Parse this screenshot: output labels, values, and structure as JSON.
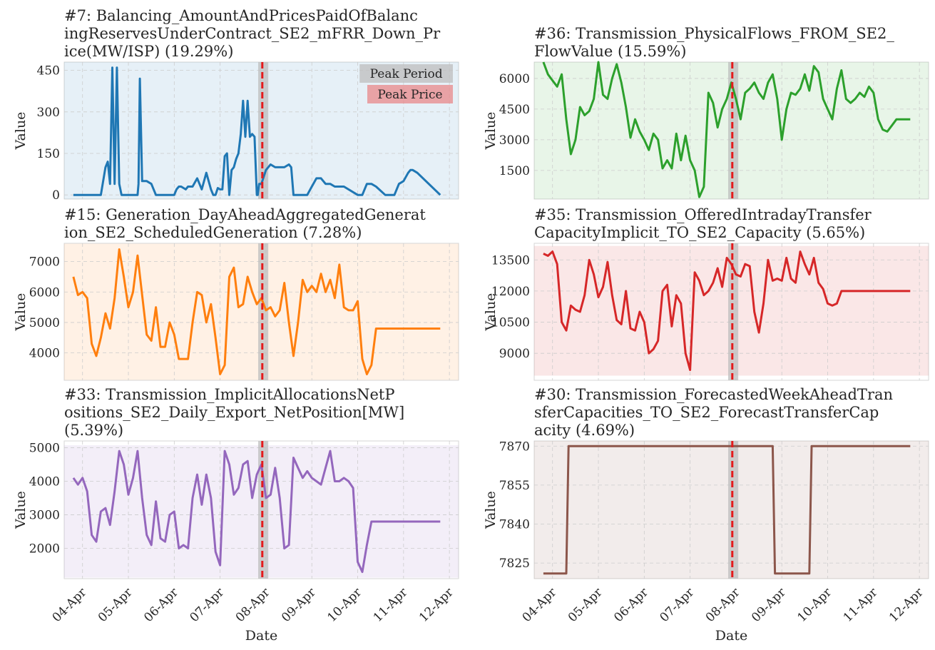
{
  "chart_data": [
    {
      "type": "line",
      "title_lines": [
        "#7: Balancing_AmountAndPricesPaidOfBalanc",
        "ingReservesUnderContract_SE2_mFRR_Down_Pr",
        "ice(MW/ISP) (19.29%)"
      ],
      "ylabel": "Value",
      "xlabel": "",
      "ylim": [
        -15,
        480
      ],
      "yticks": [
        0,
        150,
        300,
        450
      ],
      "ytick_labels": [
        "0",
        "150",
        "300",
        "450"
      ],
      "color": "#1f77b4",
      "band_color": "#1f77b4",
      "legend": [
        "Peak Period",
        "Peak Price"
      ],
      "series": [
        {
          "x": [
            0,
            0.3,
            0.6,
            0.7,
            0.75,
            0.8,
            0.85,
            0.9,
            0.95,
            1.0,
            1.05,
            1.1,
            1.4,
            1.42,
            1.45,
            1.5,
            1.6,
            1.7,
            1.75,
            1.8,
            1.85,
            1.9,
            2.2,
            2.25,
            2.3,
            2.35,
            2.45,
            2.5,
            2.6,
            2.7,
            2.8,
            2.9,
            3.0,
            3.05,
            3.1,
            3.15,
            3.2,
            3.25,
            3.3,
            3.35,
            3.4,
            3.45,
            3.5,
            3.55,
            3.6,
            3.65,
            3.7,
            3.75,
            3.8,
            3.85,
            3.9,
            3.95,
            4.0,
            4.02,
            4.05,
            4.1,
            4.2,
            4.3,
            4.4,
            4.5,
            4.6,
            4.7,
            4.75,
            4.8,
            5.1,
            5.2,
            5.3,
            5.4,
            5.5,
            5.6,
            5.7,
            5.8,
            5.9,
            6.2,
            6.3,
            6.4,
            6.5,
            6.6,
            6.8,
            6.9,
            7.0,
            7.1,
            7.2,
            7.3,
            7.35,
            7.4,
            7.5,
            8.0
          ],
          "y": [
            0,
            0,
            0,
            100,
            120,
            40,
            460,
            40,
            460,
            40,
            0,
            0,
            0,
            40,
            420,
            50,
            50,
            40,
            20,
            0,
            0,
            0,
            0,
            20,
            30,
            30,
            20,
            30,
            30,
            60,
            20,
            80,
            20,
            0,
            0,
            25,
            20,
            20,
            140,
            150,
            0,
            90,
            100,
            130,
            150,
            220,
            340,
            210,
            340,
            210,
            220,
            210,
            0,
            0,
            40,
            40,
            90,
            110,
            100,
            100,
            100,
            110,
            100,
            0,
            0,
            30,
            60,
            60,
            40,
            40,
            30,
            30,
            30,
            0,
            0,
            40,
            40,
            30,
            0,
            0,
            0,
            40,
            50,
            80,
            90,
            90,
            80,
            0
          ]
        }
      ]
    },
    {
      "type": "line",
      "title_lines": [
        "#36: Transmission_PhysicalFlows_FROM_SE2_",
        "FlowValue (15.59%)"
      ],
      "ylabel": "Value",
      "xlabel": "",
      "ylim": [
        100,
        6800
      ],
      "yticks": [
        1500,
        3000,
        4500,
        6000
      ],
      "ytick_labels": [
        "1500",
        "3000",
        "4500",
        "6000"
      ],
      "color": "#2ca02c",
      "band_color": "#2ca02c",
      "series": [
        {
          "x": [
            0,
            0.1,
            0.2,
            0.3,
            0.4,
            0.5,
            0.6,
            0.7,
            0.8,
            0.9,
            1.0,
            1.1,
            1.2,
            1.3,
            1.4,
            1.5,
            1.6,
            1.7,
            1.8,
            1.9,
            2.0,
            2.1,
            2.2,
            2.3,
            2.4,
            2.5,
            2.6,
            2.7,
            2.8,
            2.9,
            3.0,
            3.1,
            3.2,
            3.3,
            3.4,
            3.5,
            3.6,
            3.7,
            3.8,
            3.9,
            4.0,
            4.1,
            4.2,
            4.3,
            4.4,
            4.5,
            4.6,
            4.7,
            4.8,
            4.9,
            5.0,
            5.1,
            5.2,
            5.3,
            5.4,
            5.5,
            5.6,
            5.7,
            5.8,
            5.9,
            6.0,
            6.1,
            6.2,
            6.3,
            6.4,
            6.5,
            6.6,
            6.7,
            6.8,
            6.9,
            7.0,
            7.1,
            7.2,
            7.3,
            7.4,
            7.5,
            7.6,
            7.7,
            7.8,
            7.9,
            8.0
          ],
          "y": [
            6800,
            6200,
            5900,
            5600,
            6200,
            4000,
            2300,
            3000,
            4600,
            4200,
            4400,
            5000,
            6800,
            5200,
            5000,
            6000,
            6700,
            5800,
            4600,
            3100,
            4000,
            3400,
            3000,
            2500,
            3300,
            3000,
            1600,
            2000,
            1600,
            3300,
            2000,
            3200,
            2000,
            1500,
            200,
            700,
            5300,
            4800,
            3600,
            4500,
            5000,
            5800,
            5000,
            4000,
            5300,
            5500,
            5800,
            5300,
            5000,
            5800,
            6200,
            5000,
            3000,
            4500,
            5300,
            5200,
            5500,
            6200,
            5400,
            6600,
            6300,
            5000,
            4500,
            4000,
            5500,
            6400,
            5000,
            4800,
            5000,
            5300,
            5100,
            5600,
            5300,
            4000,
            3500,
            3400,
            3700,
            4000,
            4000,
            4000,
            4000
          ]
        }
      ]
    },
    {
      "type": "line",
      "title_lines": [
        "#15: Generation_DayAheadAggregatedGenerat",
        "ion_SE2_ScheduledGeneration (7.28%)"
      ],
      "ylabel": "Value",
      "xlabel": "",
      "ylim": [
        3100,
        7600
      ],
      "yticks": [
        4000,
        5000,
        6000,
        7000
      ],
      "ytick_labels": [
        "4000",
        "5000",
        "6000",
        "7000"
      ],
      "color": "#ff7f0e",
      "band_color": "#ff7f0e",
      "series": [
        {
          "x": [
            0,
            0.1,
            0.2,
            0.3,
            0.4,
            0.5,
            0.6,
            0.7,
            0.8,
            0.9,
            1.0,
            1.1,
            1.2,
            1.3,
            1.4,
            1.5,
            1.6,
            1.7,
            1.8,
            1.9,
            2.0,
            2.1,
            2.2,
            2.3,
            2.4,
            2.5,
            2.6,
            2.7,
            2.8,
            2.9,
            3.0,
            3.1,
            3.2,
            3.3,
            3.4,
            3.5,
            3.6,
            3.7,
            3.8,
            3.9,
            4.0,
            4.1,
            4.2,
            4.3,
            4.4,
            4.5,
            4.6,
            4.7,
            4.8,
            4.9,
            5.0,
            5.1,
            5.2,
            5.3,
            5.4,
            5.5,
            5.6,
            5.7,
            5.8,
            5.9,
            6.0,
            6.1,
            6.2,
            6.3,
            6.4,
            6.5,
            6.6,
            6.7,
            6.8,
            6.9,
            7.0,
            7.1,
            7.2,
            7.3,
            7.4,
            7.5,
            7.6,
            7.7,
            7.8,
            7.9,
            8.0
          ],
          "y": [
            6500,
            5900,
            6000,
            5800,
            4300,
            3900,
            4500,
            5300,
            4800,
            5800,
            7400,
            6500,
            5500,
            6000,
            7200,
            5900,
            4600,
            4400,
            5500,
            4200,
            4200,
            5000,
            4600,
            3800,
            3800,
            3800,
            5000,
            6000,
            5900,
            5000,
            5600,
            4500,
            3300,
            3600,
            6500,
            6800,
            5500,
            5600,
            6500,
            6000,
            5600,
            5800,
            5400,
            5500,
            5200,
            5400,
            6300,
            5000,
            3900,
            5000,
            6400,
            6000,
            6200,
            6000,
            6600,
            6000,
            6400,
            5800,
            6900,
            5500,
            5400,
            5400,
            5700,
            3800,
            3300,
            3600,
            4800,
            4800,
            4800,
            4800,
            4800,
            4800,
            4800,
            4800,
            4800,
            4800,
            4800,
            4800,
            4800,
            4800,
            4800
          ]
        }
      ]
    },
    {
      "type": "line",
      "title_lines": [
        "#35: Transmission_OfferedIntradayTransfer",
        "CapacityImplicit_TO_SE2_Capacity (5.65%)"
      ],
      "ylabel": "Value",
      "xlabel": "",
      "ylim": [
        7700,
        14300
      ],
      "yticks": [
        9000,
        10500,
        12000,
        13500
      ],
      "ytick_labels": [
        "9000",
        "10500",
        "12000",
        "13500"
      ],
      "color": "#d62728",
      "band_color": "#d62728",
      "series": [
        {
          "x": [
            0,
            0.1,
            0.2,
            0.3,
            0.4,
            0.5,
            0.6,
            0.7,
            0.8,
            0.9,
            1.0,
            1.1,
            1.2,
            1.3,
            1.4,
            1.5,
            1.6,
            1.7,
            1.8,
            1.9,
            2.0,
            2.1,
            2.2,
            2.3,
            2.4,
            2.5,
            2.6,
            2.7,
            2.8,
            2.9,
            3.0,
            3.1,
            3.2,
            3.3,
            3.4,
            3.5,
            3.6,
            3.7,
            3.8,
            3.9,
            4.0,
            4.1,
            4.2,
            4.3,
            4.4,
            4.5,
            4.6,
            4.7,
            4.8,
            4.9,
            5.0,
            5.1,
            5.2,
            5.3,
            5.4,
            5.5,
            5.6,
            5.7,
            5.8,
            5.9,
            6.0,
            6.1,
            6.2,
            6.3,
            6.4,
            6.5,
            6.6,
            6.7,
            6.8,
            6.9,
            7.0,
            7.1,
            7.2,
            7.3,
            7.4,
            7.5,
            7.6,
            7.7,
            7.8,
            7.9,
            8.0
          ],
          "y": [
            13800,
            13700,
            13900,
            13300,
            10500,
            10100,
            11300,
            11100,
            11000,
            11800,
            13500,
            12800,
            11700,
            12200,
            13400,
            11800,
            10600,
            10400,
            12000,
            10200,
            10100,
            11000,
            10500,
            9000,
            9200,
            9600,
            12000,
            12300,
            10300,
            11800,
            11400,
            9000,
            8200,
            12900,
            12500,
            11800,
            12000,
            12400,
            13100,
            12200,
            13600,
            13300,
            12800,
            12700,
            13300,
            13200,
            11000,
            10000,
            11400,
            13500,
            12500,
            12600,
            12500,
            13600,
            12600,
            12400,
            13900,
            13300,
            12800,
            13600,
            12400,
            12100,
            11400,
            11300,
            11400,
            12000,
            12000,
            12000,
            12000,
            12000,
            12000,
            12000,
            12000,
            12000,
            12000,
            12000,
            12000,
            12000,
            12000,
            12000,
            12000
          ]
        }
      ]
    },
    {
      "type": "line",
      "title_lines": [
        "#33: Transmission_ImplicitAllocationsNetP",
        "ositions_SE2_Daily_Export_NetPosition[MW]",
        "(5.39%)"
      ],
      "ylabel": "Value",
      "xlabel": "Date",
      "ylim": [
        1100,
        5200
      ],
      "yticks": [
        2000,
        3000,
        4000,
        5000
      ],
      "ytick_labels": [
        "2000",
        "3000",
        "4000",
        "5000"
      ],
      "color": "#9467bd",
      "band_color": "#9467bd",
      "series": [
        {
          "x": [
            0,
            0.1,
            0.2,
            0.3,
            0.4,
            0.5,
            0.6,
            0.7,
            0.8,
            0.9,
            1.0,
            1.1,
            1.2,
            1.3,
            1.4,
            1.5,
            1.6,
            1.7,
            1.8,
            1.9,
            2.0,
            2.1,
            2.2,
            2.3,
            2.4,
            2.5,
            2.6,
            2.7,
            2.8,
            2.9,
            3.0,
            3.1,
            3.2,
            3.3,
            3.4,
            3.5,
            3.6,
            3.7,
            3.8,
            3.9,
            4.0,
            4.1,
            4.2,
            4.3,
            4.4,
            4.5,
            4.6,
            4.7,
            4.8,
            4.9,
            5.0,
            5.1,
            5.2,
            5.3,
            5.4,
            5.5,
            5.6,
            5.7,
            5.8,
            5.9,
            6.0,
            6.1,
            6.2,
            6.3,
            6.4,
            6.5,
            6.6,
            6.7,
            6.8,
            6.9,
            7.0,
            7.1,
            7.2,
            7.3,
            7.4,
            7.5,
            7.6,
            7.7,
            7.8,
            7.9,
            8.0
          ],
          "y": [
            4100,
            3900,
            4100,
            3700,
            2400,
            2200,
            3100,
            3200,
            2700,
            3700,
            4900,
            4500,
            3600,
            4100,
            4900,
            3500,
            2400,
            2100,
            3400,
            2300,
            2200,
            3000,
            3100,
            2000,
            2100,
            2000,
            3500,
            4200,
            3300,
            4200,
            3500,
            1900,
            1500,
            4900,
            4500,
            3600,
            3800,
            4500,
            4600,
            3500,
            4200,
            4500,
            3500,
            3600,
            4400,
            3500,
            2000,
            2100,
            4700,
            4400,
            4100,
            4300,
            4100,
            4000,
            3900,
            4400,
            4900,
            4000,
            4000,
            4100,
            4000,
            3800,
            1600,
            1300,
            2100,
            2800,
            2800,
            2800,
            2800,
            2800,
            2800,
            2800,
            2800,
            2800,
            2800,
            2800,
            2800,
            2800,
            2800,
            2800,
            2800
          ]
        }
      ]
    },
    {
      "type": "line",
      "title_lines": [
        "#30: Transmission_ForecastedWeekAheadTran",
        "sferCapacities_TO_SE2_ForecastTransferCap",
        "acity (4.69%)"
      ],
      "ylabel": "Value",
      "xlabel": "Date",
      "ylim": [
        7819,
        7872
      ],
      "yticks": [
        7825,
        7840,
        7855,
        7870
      ],
      "ytick_labels": [
        "7825",
        "7840",
        "7855",
        "7870"
      ],
      "color": "#8c564b",
      "band_color": "#8c564b",
      "series": [
        {
          "x": [
            0,
            0.5,
            0.55,
            5.0,
            5.05,
            5.8,
            5.85,
            8.0
          ],
          "y": [
            7821,
            7821,
            7870,
            7870,
            7821,
            7821,
            7870,
            7870
          ]
        }
      ]
    }
  ],
  "x_axis": {
    "range_days": [
      3.6,
      12.2
    ],
    "tick_labels": [
      "04-Apr",
      "05-Apr",
      "06-Apr",
      "07-Apr",
      "08-Apr",
      "09-Apr",
      "10-Apr",
      "11-Apr",
      "12-Apr"
    ],
    "peak_period": [
      7.83,
      8.05
    ],
    "peak_line": 7.92
  },
  "legend_colors": {
    "peak_period": "#bdbdbd",
    "peak_price": "#e8888a",
    "peak_line": "#e41a1c",
    "grid": "#cccccc"
  }
}
